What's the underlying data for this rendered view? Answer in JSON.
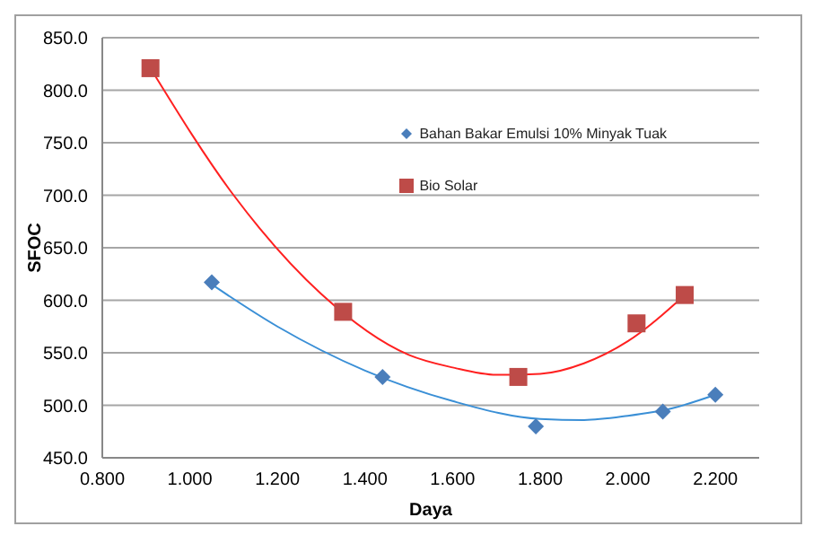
{
  "chart_data": {
    "type": "scatter",
    "xlabel": "Daya",
    "ylabel": "SFOC",
    "xlim": [
      0.8,
      2.3
    ],
    "xticks": [
      {
        "value": 0.8,
        "label": "0.800"
      },
      {
        "value": 1.0,
        "label": "1.000"
      },
      {
        "value": 1.2,
        "label": "1.200"
      },
      {
        "value": 1.4,
        "label": "1.400"
      },
      {
        "value": 1.6,
        "label": "1.600"
      },
      {
        "value": 1.8,
        "label": "1.800"
      },
      {
        "value": 2.0,
        "label": "2.000"
      },
      {
        "value": 2.2,
        "label": "2.200"
      }
    ],
    "ylim": [
      450,
      850
    ],
    "yticks": [
      {
        "value": 450,
        "label": "450.0"
      },
      {
        "value": 500,
        "label": "500.0"
      },
      {
        "value": 550,
        "label": "550.0"
      },
      {
        "value": 600,
        "label": "600.0"
      },
      {
        "value": 650,
        "label": "650.0"
      },
      {
        "value": 700,
        "label": "700.0"
      },
      {
        "value": 750,
        "label": "750.0"
      },
      {
        "value": 800,
        "label": "800.0"
      },
      {
        "value": 850,
        "label": "850.0"
      }
    ],
    "grid": "y",
    "legend": "top",
    "series": [
      {
        "name": "Bahan Bakar Emulsi 10% Minyak Tuak",
        "marker": "diamond",
        "color": "#4a7ebb",
        "x": [
          1.05,
          1.44,
          1.79,
          2.08,
          2.2
        ],
        "values": [
          617,
          527,
          480,
          494,
          510
        ]
      },
      {
        "name": "Bio Solar",
        "marker": "square",
        "color": "#be4b48",
        "x": [
          0.91,
          1.35,
          1.75,
          2.02,
          2.13
        ],
        "values": [
          821,
          589,
          527,
          578,
          605
        ]
      },
      {
        "type": "line",
        "marker": "none",
        "color": "#3a8fd6",
        "x": [
          1.05,
          1.2,
          1.4,
          1.6,
          1.8,
          1.9,
          2.0,
          2.1,
          2.2
        ],
        "values": [
          615,
          575,
          533,
          504,
          487,
          486,
          490,
          497,
          510
        ]
      },
      {
        "type": "line",
        "marker": "none",
        "color": "#ff2020",
        "x": [
          0.91,
          1.1,
          1.3,
          1.5,
          1.6,
          1.7,
          1.8,
          1.9,
          2.0,
          2.13
        ],
        "values": [
          821,
          700,
          606,
          548,
          536,
          529,
          530,
          540,
          561,
          605
        ]
      }
    ]
  }
}
